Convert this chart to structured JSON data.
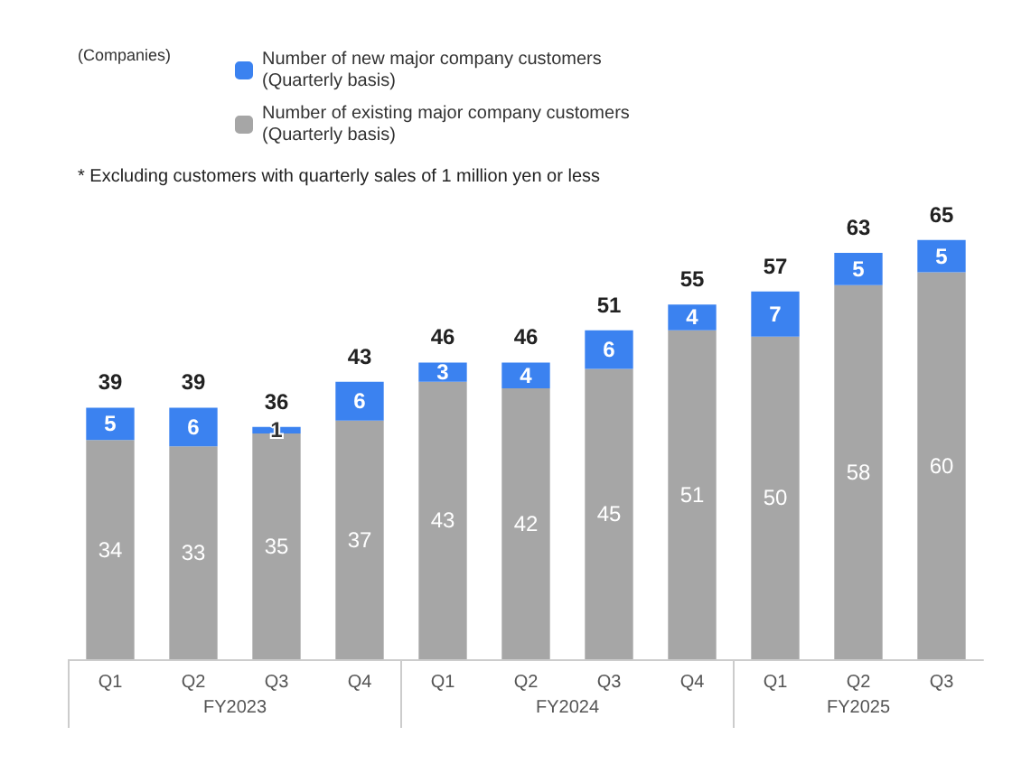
{
  "chart_data": {
    "type": "bar",
    "stacked": true,
    "data_labels": true,
    "legend": "top left",
    "grid": false,
    "categories": [
      "Q1",
      "Q2",
      "Q3",
      "Q4",
      "Q1",
      "Q2",
      "Q3",
      "Q4",
      "Q1",
      "Q2",
      "Q3"
    ],
    "series": [
      {
        "name": "Number of existing major company customers (Quarterly basis)",
        "color": "#a6a6a6",
        "values": [
          34,
          33,
          35,
          37,
          43,
          42,
          45,
          51,
          50,
          58,
          60
        ]
      },
      {
        "name": "Number of new major company customers (Quarterly basis)",
        "color": "#3b82f0",
        "values": [
          5,
          6,
          1,
          6,
          3,
          4,
          6,
          4,
          7,
          5,
          5
        ]
      }
    ],
    "totals": [
      "39",
      "39",
      "36",
      "43",
      "46",
      "46",
      "51",
      "55",
      "57",
      "63",
      "65"
    ],
    "annotations": [
      "(Companies)",
      "* Excluding customers with quarterly sales of 1 million yen or less",
      "FY2023",
      "FY2024",
      "FY2025"
    ]
  }
}
